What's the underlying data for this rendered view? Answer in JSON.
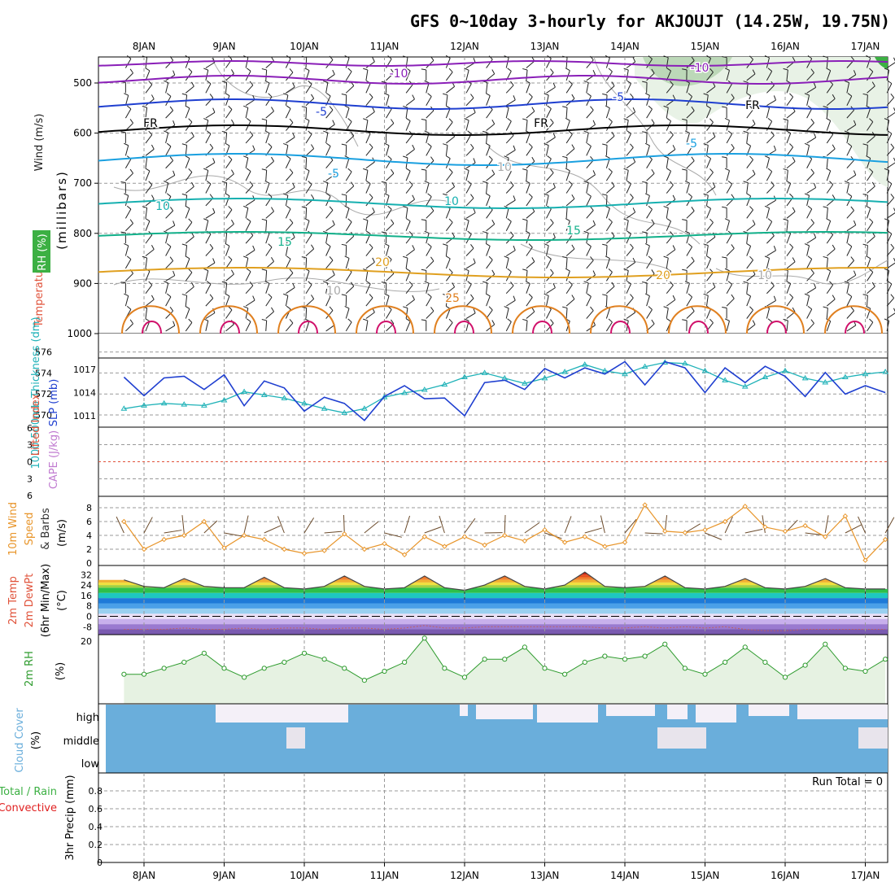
{
  "title": "GFS 0~10day 3-hourly for AKJOUJT (14.25W, 19.75N)",
  "date_labels": [
    "8JAN",
    "9JAN",
    "10JAN",
    "11JAN",
    "12JAN",
    "13JAN",
    "14JAN",
    "15JAN",
    "16JAN",
    "17JAN"
  ],
  "colors": {
    "rh_green": "#3cb043",
    "temp_label": "#e0523a",
    "wind_label": "#222222",
    "cyan": "#1fb2b8",
    "blue": "#1f3fd0",
    "lifted": "#e0523a",
    "cape": "#c07ad0",
    "wind10": "#e8952a",
    "precip_total": "#3cb043",
    "precip_conv": "#e02020",
    "cloud_blue": "#6aaedb",
    "rh2m": "#2e9b2e"
  },
  "panels": {
    "upper": {
      "ylabel_wind": "Wind (m/s)",
      "ylabel_temp": "Temperature (°C)",
      "ylabel_rh": "RH (%)",
      "ylabel_unit": "(millibars)",
      "pressure_ticks": [
        "500",
        "600",
        "700",
        "800",
        "900",
        "1000"
      ],
      "contour_labels": [
        "-10",
        "-10",
        "-5",
        "-5",
        "FR",
        "FR",
        "FR",
        "-5",
        "-5",
        "10",
        "10",
        "15",
        "15",
        "20",
        "20",
        "25",
        "10",
        "10",
        "10"
      ]
    },
    "thickness": {
      "ylabel_left": "1000-500mb Thickness (dm)",
      "ylabel_right": "SLP (mb)",
      "left_ticks": [
        "576",
        "574",
        "572",
        "570"
      ],
      "right_ticks": [
        "1017",
        "1014",
        "1011"
      ]
    },
    "stability": {
      "ylabel_left": "Lifted Index",
      "ylabel_right": "CAPE (J/kg)",
      "ticks": [
        "6",
        "3",
        "0",
        "3",
        "6"
      ]
    },
    "wind10m": {
      "ylabel_a": "10m Wind",
      "ylabel_b": "Speed",
      "ylabel_c": "& Barbs",
      "ylabel_unit": "(m/s)",
      "ticks": [
        "8",
        "6",
        "4",
        "2",
        "0"
      ]
    },
    "temp2m": {
      "ylabel_a": "2m Temp",
      "ylabel_b": "2m DewPt",
      "ylabel_c": "(6hr Min/Max)",
      "ylabel_unit": "(°C)",
      "ticks": [
        "32",
        "24",
        "16",
        "8",
        "0",
        "-8"
      ]
    },
    "rh2m": {
      "ylabel_a": "2m RH",
      "ylabel_unit": "(%)",
      "ticks": [
        "20"
      ]
    },
    "cloud": {
      "ylabel_a": "Cloud Cover",
      "ylabel_unit": "(%)",
      "levels": [
        "high",
        "middle",
        "low"
      ]
    },
    "precip": {
      "ylabel_a": "Total / Rain",
      "ylabel_b": "Convective",
      "ylabel_c": "3hr Precip (mm)",
      "ticks": [
        "0.8",
        "0.6",
        "0.4",
        "0.2",
        "0"
      ],
      "run_total": "Run Total = 0"
    }
  },
  "chart_data": [
    {
      "type": "line",
      "title": "1000-500mb Thickness / SLP",
      "x": [
        "07JAN18",
        "08JAN00",
        "08JAN06",
        "08JAN12",
        "08JAN18",
        "09JAN00",
        "09JAN06",
        "09JAN12",
        "09JAN18",
        "10JAN00",
        "10JAN06",
        "10JAN12",
        "10JAN18",
        "11JAN00",
        "11JAN06",
        "11JAN12",
        "11JAN18",
        "12JAN00",
        "12JAN06",
        "12JAN12",
        "12JAN18",
        "13JAN00",
        "13JAN06",
        "13JAN12",
        "13JAN18",
        "14JAN00",
        "14JAN06",
        "14JAN12",
        "14JAN18",
        "15JAN00",
        "15JAN06",
        "15JAN12",
        "15JAN18",
        "16JAN00",
        "16JAN06",
        "16JAN12",
        "16JAN18",
        "17JAN00",
        "17JAN06"
      ],
      "series": [
        {
          "name": "1000-500mb Thickness (dm)",
          "values": [
            570.6,
            570.9,
            571.1,
            571.0,
            570.9,
            571.4,
            572.2,
            571.9,
            571.6,
            571.1,
            570.6,
            570.2,
            570.6,
            571.7,
            572.1,
            572.4,
            572.9,
            573.6,
            574.0,
            573.5,
            573.0,
            573.5,
            574.1,
            574.8,
            574.2,
            573.9,
            574.6,
            575.0,
            574.9,
            574.2,
            573.3,
            572.7,
            573.6,
            574.2,
            573.5,
            573.1,
            573.6,
            573.9,
            574.1
          ]
        },
        {
          "name": "SLP (mb)",
          "values": [
            1016,
            1013.6,
            1015.9,
            1016.1,
            1014.4,
            1016.3,
            1012.3,
            1015.5,
            1014.6,
            1011.6,
            1013.4,
            1012.6,
            1010.4,
            1013.5,
            1014.9,
            1013.2,
            1013.3,
            1011.0,
            1015.3,
            1015.6,
            1014.4,
            1017.1,
            1015.9,
            1017.2,
            1016.4,
            1018.0,
            1015.0,
            1018.0,
            1017.2,
            1014.0,
            1017.2,
            1015.3,
            1017.4,
            1016.1,
            1013.5,
            1016.6,
            1013.8,
            1014.9,
            1014.0
          ]
        }
      ],
      "ylim": [
        569,
        576
      ]
    },
    {
      "type": "line",
      "title": "10m Wind Speed",
      "x": [
        "07JAN18",
        "08JAN00",
        "08JAN06",
        "08JAN12",
        "08JAN18",
        "09JAN00",
        "09JAN06",
        "09JAN12",
        "09JAN18",
        "10JAN00",
        "10JAN06",
        "10JAN12",
        "10JAN18",
        "11JAN00",
        "11JAN06",
        "11JAN12",
        "11JAN18",
        "12JAN00",
        "12JAN06",
        "12JAN12",
        "12JAN18",
        "13JAN00",
        "13JAN06",
        "13JAN12",
        "13JAN18",
        "14JAN00",
        "14JAN06",
        "14JAN12",
        "14JAN18",
        "15JAN00",
        "15JAN06",
        "15JAN12",
        "15JAN18",
        "16JAN00",
        "16JAN06",
        "16JAN12",
        "16JAN18",
        "17JAN00",
        "17JAN06"
      ],
      "series": [
        {
          "name": "10m Wind Speed (m/s)",
          "values": [
            6.0,
            2.0,
            3.4,
            4.0,
            6.0,
            2.2,
            4.0,
            3.4,
            2.0,
            1.4,
            1.8,
            4.2,
            2.0,
            2.8,
            1.2,
            3.8,
            2.4,
            3.8,
            2.6,
            4.0,
            3.2,
            4.8,
            3.0,
            3.8,
            2.4,
            3.0,
            8.4,
            4.6,
            4.4,
            4.8,
            6.0,
            8.2,
            5.2,
            4.6,
            5.4,
            3.8,
            6.8,
            0.4,
            3.4
          ]
        }
      ],
      "ylim": [
        0,
        9
      ]
    },
    {
      "type": "area",
      "title": "2m Temp",
      "x": [
        "07JAN18",
        "08JAN00",
        "08JAN06",
        "08JAN12",
        "08JAN18",
        "09JAN00",
        "09JAN06",
        "09JAN12",
        "09JAN18",
        "10JAN00",
        "10JAN06",
        "10JAN12",
        "10JAN18",
        "11JAN00",
        "11JAN06",
        "11JAN12",
        "11JAN18",
        "12JAN00",
        "12JAN06",
        "12JAN12",
        "12JAN18",
        "13JAN00",
        "13JAN06",
        "13JAN12",
        "13JAN18",
        "14JAN00",
        "14JAN06",
        "14JAN12",
        "14JAN18",
        "15JAN00",
        "15JAN06",
        "15JAN12",
        "15JAN18",
        "16JAN00",
        "16JAN06",
        "16JAN12",
        "16JAN18",
        "17JAN00",
        "17JAN06"
      ],
      "series": [
        {
          "name": "2m Temp (°C)",
          "values": [
            28,
            23,
            22,
            29,
            23,
            22,
            22,
            30,
            22,
            21,
            23,
            31,
            23,
            21,
            22,
            31,
            22,
            20,
            24,
            31,
            23,
            21,
            24,
            34,
            23,
            22,
            23,
            31,
            22,
            21,
            23,
            29,
            22,
            21,
            23,
            29,
            22,
            21,
            21
          ]
        },
        {
          "name": "2m DewPt (°C)",
          "values": [
            -10,
            -10,
            -10,
            -9,
            -10,
            -10,
            -9,
            -10,
            -9,
            -9,
            -10,
            -9,
            -9,
            -10,
            -9,
            -7,
            -9,
            -9,
            -8,
            -8,
            -8,
            -8,
            -8,
            -8,
            -9,
            -9,
            -8,
            -9,
            -8,
            -9,
            -8,
            -10,
            -11,
            -11,
            -10,
            -10,
            -10,
            -10,
            -10
          ]
        }
      ],
      "ylim": [
        -14,
        36
      ]
    },
    {
      "type": "line",
      "title": "2m RH",
      "x": [
        "07JAN18",
        "08JAN00",
        "08JAN06",
        "08JAN12",
        "08JAN18",
        "09JAN00",
        "09JAN06",
        "09JAN12",
        "09JAN18",
        "10JAN00",
        "10JAN06",
        "10JAN12",
        "10JAN18",
        "11JAN00",
        "11JAN06",
        "11JAN12",
        "11JAN18",
        "12JAN00",
        "12JAN06",
        "12JAN12",
        "12JAN18",
        "13JAN00",
        "13JAN06",
        "13JAN12",
        "13JAN18",
        "14JAN00",
        "14JAN06",
        "14JAN12",
        "14JAN18",
        "15JAN00",
        "15JAN06",
        "15JAN12",
        "15JAN18",
        "16JAN00",
        "16JAN06",
        "16JAN12",
        "16JAN18",
        "17JAN00",
        "17JAN06"
      ],
      "series": [
        {
          "name": "2m RH (%)",
          "values": [
            9,
            9,
            11,
            13,
            16,
            11,
            8,
            11,
            13,
            16,
            14,
            11,
            7,
            10,
            13,
            21,
            11,
            8,
            14,
            14,
            18,
            11,
            9,
            13,
            15,
            14,
            15,
            19,
            11,
            9,
            13,
            18,
            13,
            8,
            12,
            19,
            11,
            10,
            14
          ]
        }
      ],
      "ylim": [
        0,
        23
      ]
    },
    {
      "type": "line",
      "title": "3hr Precip",
      "x": [
        "07JAN18",
        "17JAN06"
      ],
      "series": [
        {
          "name": "3hr Precip (mm)",
          "values": [
            0,
            0
          ]
        }
      ],
      "ylim": [
        0,
        1
      ]
    }
  ]
}
